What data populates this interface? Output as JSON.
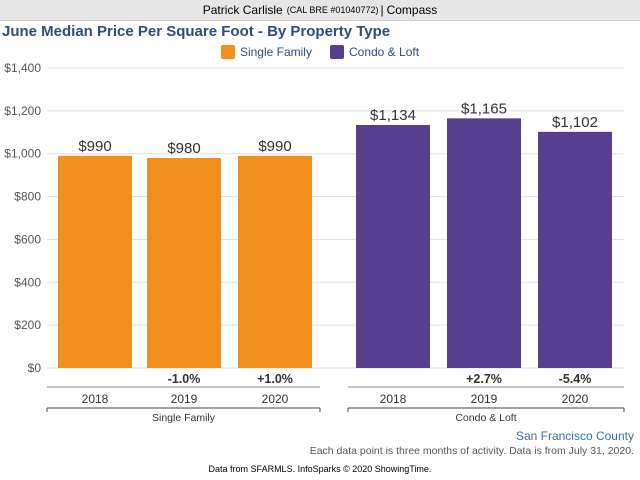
{
  "header": {
    "agent": "Patrick Carlisle",
    "license": "(CAL BRE #01040772)",
    "separator": "|",
    "company": "Compass"
  },
  "colors": {
    "single_family": "#f08f1e",
    "condo_loft": "#583e8f",
    "title": "#2d4d7a",
    "grid": "#e0e0e0"
  },
  "chart_data": {
    "type": "bar",
    "title": "June Median Price Per Square Foot - By Property Type",
    "ylim": [
      0,
      1400
    ],
    "yticks": [
      "$0",
      "$200",
      "$400",
      "$600",
      "$800",
      "$1,000",
      "$1,200",
      "$1,400"
    ],
    "ytick_values": [
      0,
      200,
      400,
      600,
      800,
      1000,
      1200,
      1400
    ],
    "legend": [
      "Single Family",
      "Condo & Loft"
    ],
    "groups": [
      {
        "name": "Single Family",
        "series_key": "single_family",
        "categories": [
          "2018",
          "2019",
          "2020"
        ],
        "values": [
          990,
          980,
          990
        ],
        "value_labels": [
          "$990",
          "$980",
          "$990"
        ],
        "changes": [
          "",
          "-1.0%",
          "+1.0%"
        ]
      },
      {
        "name": "Condo & Loft",
        "series_key": "condo_loft",
        "categories": [
          "2018",
          "2019",
          "2020"
        ],
        "values": [
          1134,
          1165,
          1102
        ],
        "value_labels": [
          "$1,134",
          "$1,165",
          "$1,102"
        ],
        "changes": [
          "",
          "+2.7%",
          "-5.4%"
        ]
      }
    ]
  },
  "footer": {
    "region": "San Francisco County",
    "note": "Each data point is three months of activity. Data is from July 31, 2020.",
    "source": "Data from SFARMLS. InfoSparks © 2020 ShowingTime."
  }
}
